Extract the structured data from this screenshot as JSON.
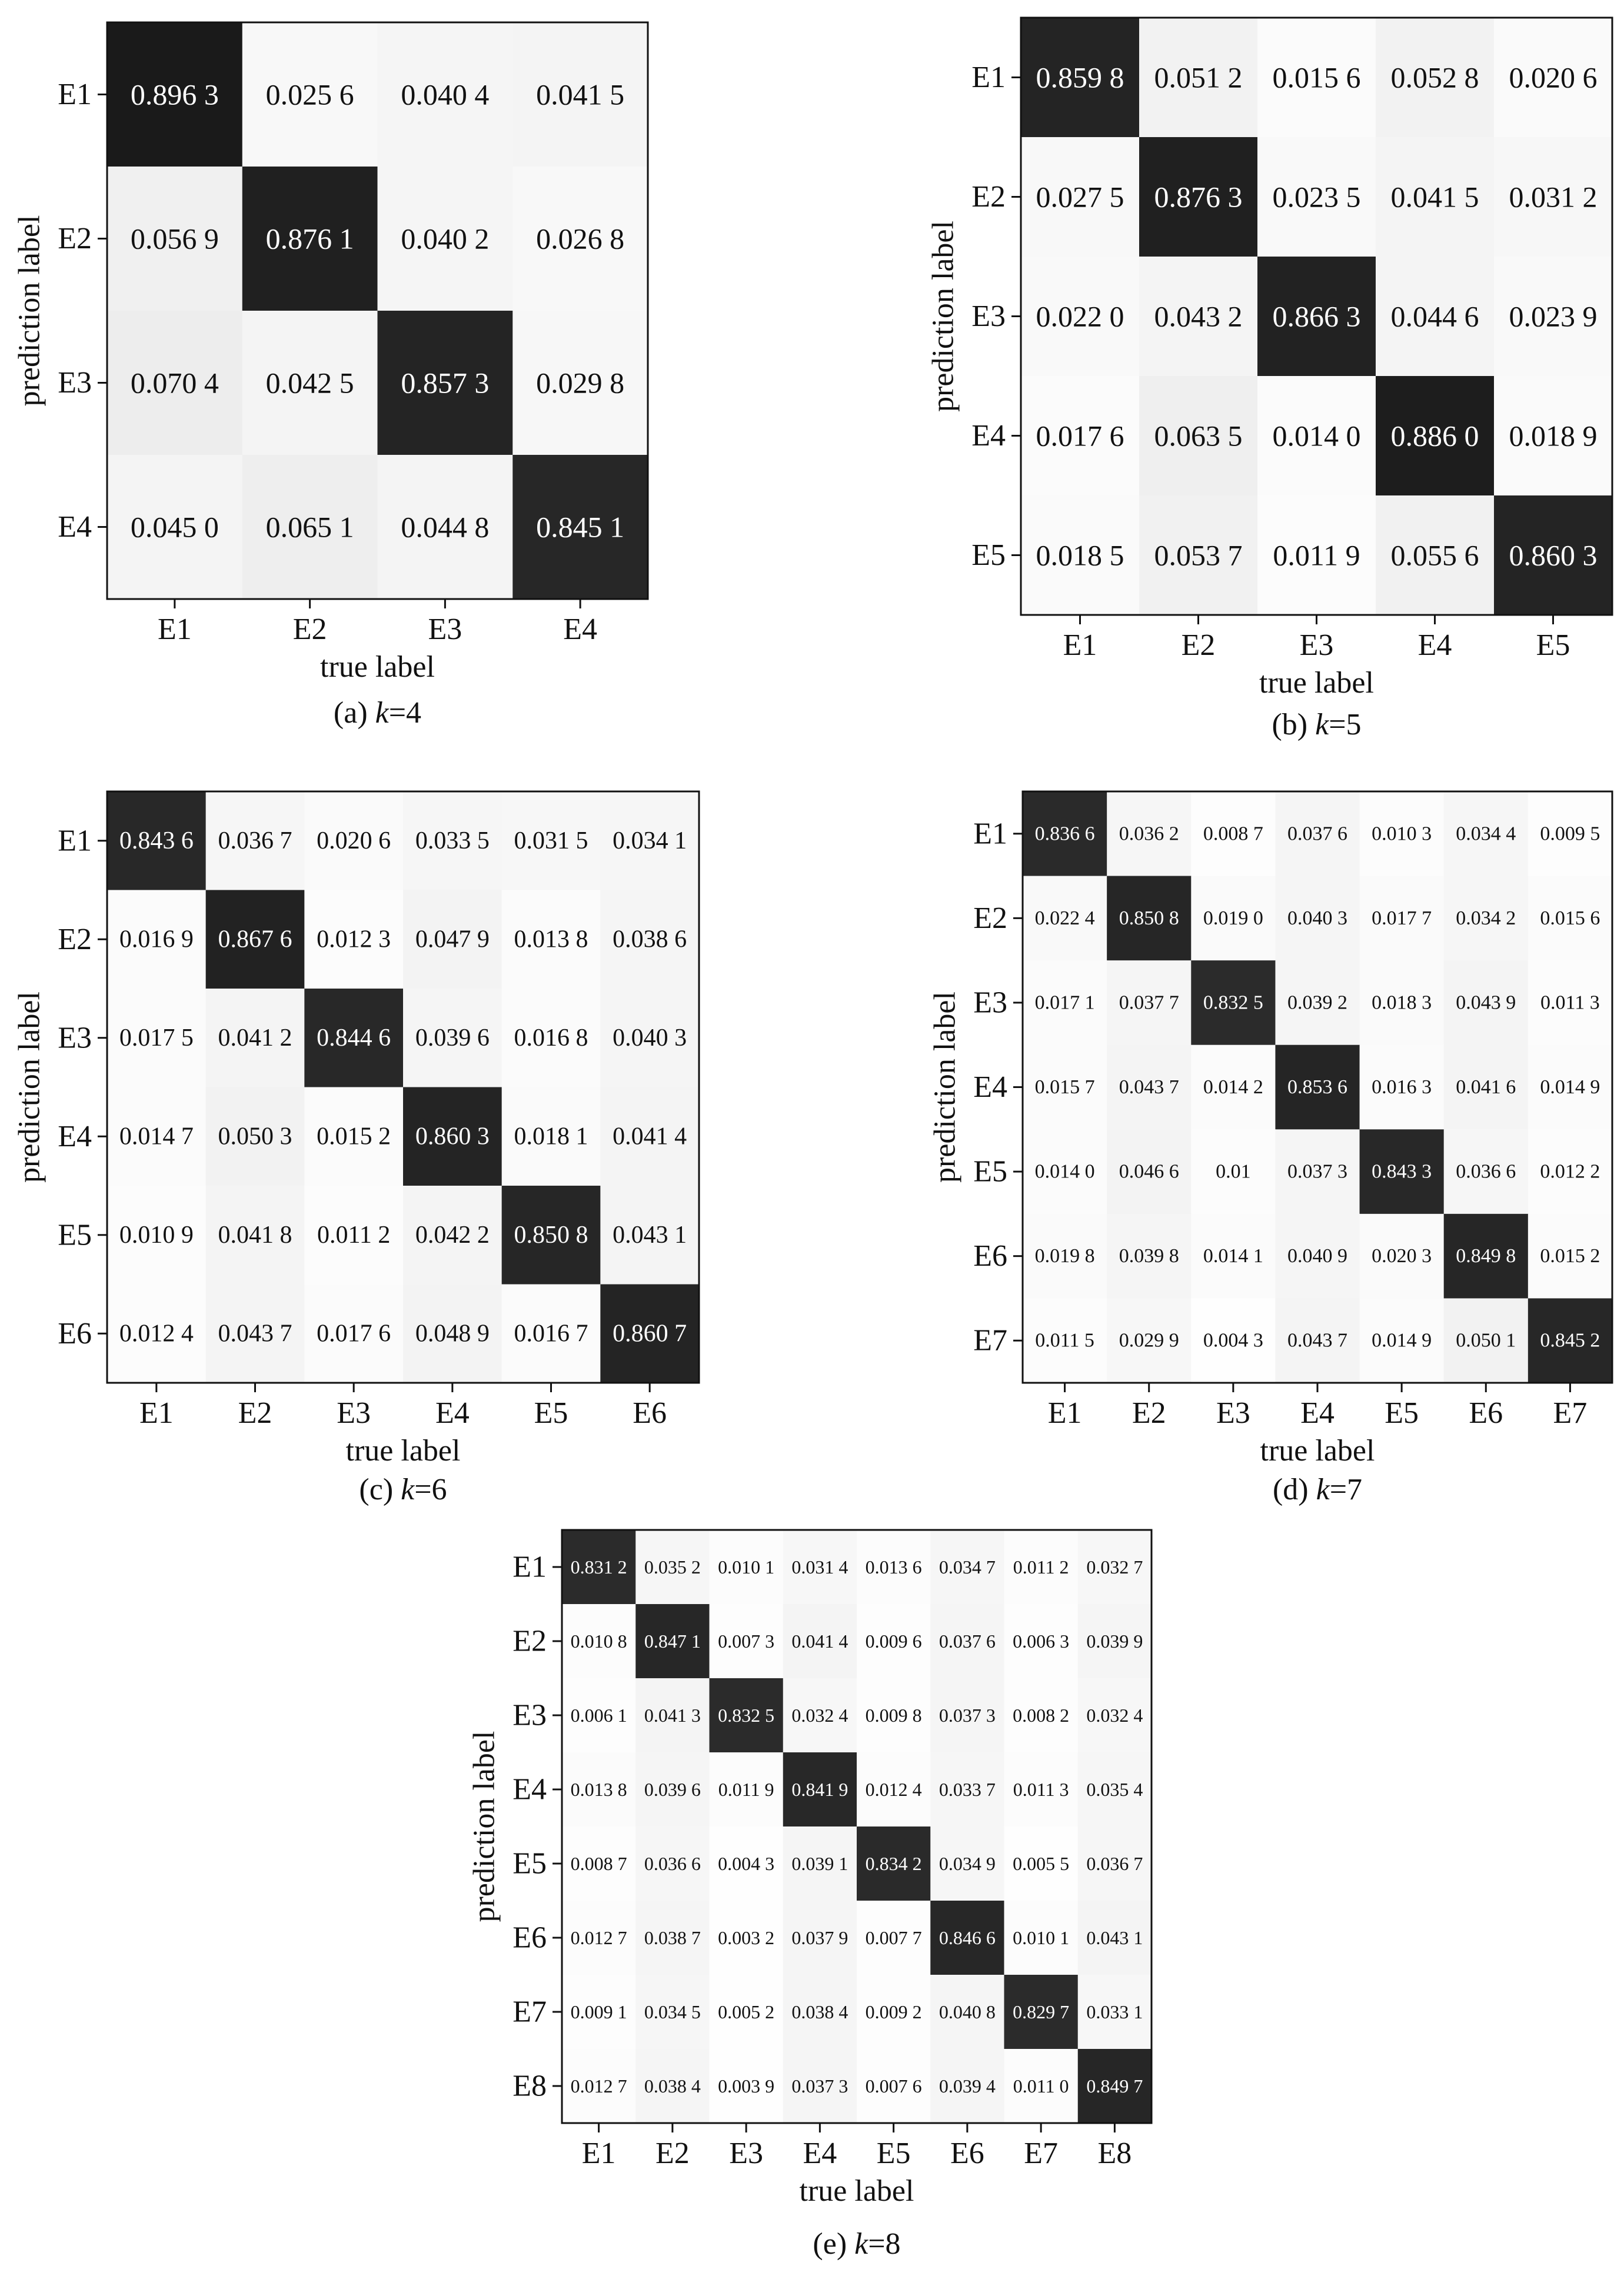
{
  "chart_data": [
    {
      "type": "heatmap",
      "caption_prefix": "(a) ",
      "caption_var": "k",
      "caption_value": "=4",
      "xlabel": "true label",
      "ylabel": "prediction label",
      "categories": [
        "E1",
        "E2",
        "E3",
        "E4"
      ],
      "values": [
        [
          "0.896 3",
          "0.025 6",
          "0.040 4",
          "0.041 5"
        ],
        [
          "0.056 9",
          "0.876 1",
          "0.040 2",
          "0.026 8"
        ],
        [
          "0.070 4",
          "0.042 5",
          "0.857 3",
          "0.029 8"
        ],
        [
          "0.045 0",
          "0.065 1",
          "0.044 8",
          "0.845 1"
        ]
      ]
    },
    {
      "type": "heatmap",
      "caption_prefix": "(b) ",
      "caption_var": "k",
      "caption_value": "=5",
      "xlabel": "true label",
      "ylabel": "prediction label",
      "categories": [
        "E1",
        "E2",
        "E3",
        "E4",
        "E5"
      ],
      "values": [
        [
          "0.859 8",
          "0.051 2",
          "0.015 6",
          "0.052 8",
          "0.020 6"
        ],
        [
          "0.027 5",
          "0.876 3",
          "0.023 5",
          "0.041 5",
          "0.031 2"
        ],
        [
          "0.022 0",
          "0.043 2",
          "0.866 3",
          "0.044 6",
          "0.023 9"
        ],
        [
          "0.017 6",
          "0.063 5",
          "0.014 0",
          "0.886 0",
          "0.018 9"
        ],
        [
          "0.018 5",
          "0.053 7",
          "0.011 9",
          "0.055 6",
          "0.860 3"
        ]
      ]
    },
    {
      "type": "heatmap",
      "caption_prefix": "(c) ",
      "caption_var": "k",
      "caption_value": "=6",
      "xlabel": "true label",
      "ylabel": "prediction label",
      "categories": [
        "E1",
        "E2",
        "E3",
        "E4",
        "E5",
        "E6"
      ],
      "values": [
        [
          "0.843 6",
          "0.036 7",
          "0.020 6",
          "0.033 5",
          "0.031 5",
          "0.034 1"
        ],
        [
          "0.016 9",
          "0.867 6",
          "0.012 3",
          "0.047 9",
          "0.013 8",
          "0.038 6"
        ],
        [
          "0.017 5",
          "0.041 2",
          "0.844 6",
          "0.039 6",
          "0.016 8",
          "0.040 3"
        ],
        [
          "0.014 7",
          "0.050 3",
          "0.015 2",
          "0.860 3",
          "0.018 1",
          "0.041 4"
        ],
        [
          "0.010 9",
          "0.041 8",
          "0.011 2",
          "0.042 2",
          "0.850 8",
          "0.043 1"
        ],
        [
          "0.012 4",
          "0.043 7",
          "0.017 6",
          "0.048 9",
          "0.016 7",
          "0.860 7"
        ]
      ]
    },
    {
      "type": "heatmap",
      "caption_prefix": "(d) ",
      "caption_var": "k",
      "caption_value": "=7",
      "xlabel": "true label",
      "ylabel": "prediction label",
      "categories": [
        "E1",
        "E2",
        "E3",
        "E4",
        "E5",
        "E6",
        "E7"
      ],
      "values": [
        [
          "0.836 6",
          "0.036 2",
          "0.008 7",
          "0.037 6",
          "0.010 3",
          "0.034 4",
          "0.009 5"
        ],
        [
          "0.022 4",
          "0.850 8",
          "0.019 0",
          "0.040 3",
          "0.017 7",
          "0.034 2",
          "0.015 6"
        ],
        [
          "0.017 1",
          "0.037 7",
          "0.832 5",
          "0.039 2",
          "0.018 3",
          "0.043 9",
          "0.011 3"
        ],
        [
          "0.015 7",
          "0.043 7",
          "0.014 2",
          "0.853 6",
          "0.016 3",
          "0.041 6",
          "0.014 9"
        ],
        [
          "0.014 0",
          "0.046 6",
          "0.01",
          "0.037 3",
          "0.843 3",
          "0.036 6",
          "0.012 2"
        ],
        [
          "0.019 8",
          "0.039 8",
          "0.014 1",
          "0.040 9",
          "0.020 3",
          "0.849 8",
          "0.015 2"
        ],
        [
          "0.011 5",
          "0.029 9",
          "0.004 3",
          "0.043 7",
          "0.014 9",
          "0.050 1",
          "0.845 2"
        ]
      ]
    },
    {
      "type": "heatmap",
      "caption_prefix": "(e) ",
      "caption_var": "k",
      "caption_value": "=8",
      "xlabel": "true label",
      "ylabel": "prediction label",
      "categories": [
        "E1",
        "E2",
        "E3",
        "E4",
        "E5",
        "E6",
        "E7",
        "E8"
      ],
      "values": [
        [
          "0.831 2",
          "0.035 2",
          "0.010 1",
          "0.031 4",
          "0.013 6",
          "0.034 7",
          "0.011 2",
          "0.032 7"
        ],
        [
          "0.010 8",
          "0.847 1",
          "0.007 3",
          "0.041 4",
          "0.009 6",
          "0.037 6",
          "0.006 3",
          "0.039 9"
        ],
        [
          "0.006 1",
          "0.041 3",
          "0.832 5",
          "0.032 4",
          "0.009 8",
          "0.037 3",
          "0.008 2",
          "0.032 4"
        ],
        [
          "0.013 8",
          "0.039 6",
          "0.011 9",
          "0.841 9",
          "0.012 4",
          "0.033 7",
          "0.011 3",
          "0.035 4"
        ],
        [
          "0.008 7",
          "0.036 6",
          "0.004 3",
          "0.039 1",
          "0.834 2",
          "0.034 9",
          "0.005 5",
          "0.036 7"
        ],
        [
          "0.012 7",
          "0.038 7",
          "0.003 2",
          "0.037 9",
          "0.007 7",
          "0.846 6",
          "0.010 1",
          "0.043 1"
        ],
        [
          "0.009 1",
          "0.034 5",
          "0.005 2",
          "0.038 4",
          "0.009 2",
          "0.040 8",
          "0.829 7",
          "0.033 1"
        ],
        [
          "0.012 7",
          "0.038 4",
          "0.003 9",
          "0.037 3",
          "0.007 6",
          "0.039 4",
          "0.011 0",
          "0.849 7"
        ]
      ]
    }
  ]
}
